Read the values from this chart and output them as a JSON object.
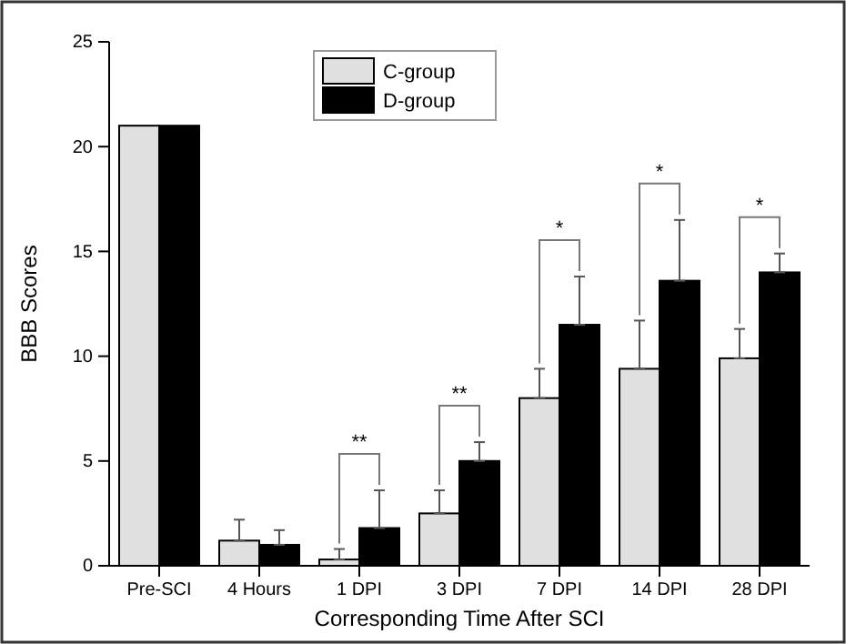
{
  "chart_data": {
    "type": "bar",
    "xlabel": "Corresponding Time After SCI",
    "ylabel": "BBB Scores",
    "categories": [
      "Pre-SCI",
      "4 Hours",
      "1 DPI",
      "3 DPI",
      "7 DPI",
      "14 DPI",
      "28 DPI"
    ],
    "series": [
      {
        "name": "C-group",
        "color": "#e0e0e0",
        "values": [
          21,
          1.2,
          0.3,
          2.5,
          8.0,
          9.4,
          9.9
        ],
        "errors": [
          null,
          [
            1.2,
            2.2
          ],
          [
            0.3,
            0.8
          ],
          [
            2.5,
            3.6
          ],
          [
            8.0,
            9.4
          ],
          [
            9.4,
            11.7
          ],
          [
            9.9,
            11.3
          ]
        ]
      },
      {
        "name": "D-group",
        "color": "#000000",
        "values": [
          21,
          1.0,
          1.8,
          5.0,
          11.5,
          13.6,
          14.0
        ],
        "errors": [
          null,
          [
            1.0,
            1.7
          ],
          [
            1.8,
            3.6
          ],
          [
            5.0,
            5.9
          ],
          [
            11.5,
            13.8
          ],
          [
            13.6,
            16.5
          ],
          [
            14.0,
            14.9
          ]
        ]
      }
    ],
    "ylim": [
      0,
      25
    ],
    "yticks": [
      0,
      5,
      10,
      15,
      20,
      25
    ],
    "legend": "top",
    "grid": false,
    "annotations": [
      "**",
      "**",
      "*",
      "*",
      "*"
    ]
  }
}
